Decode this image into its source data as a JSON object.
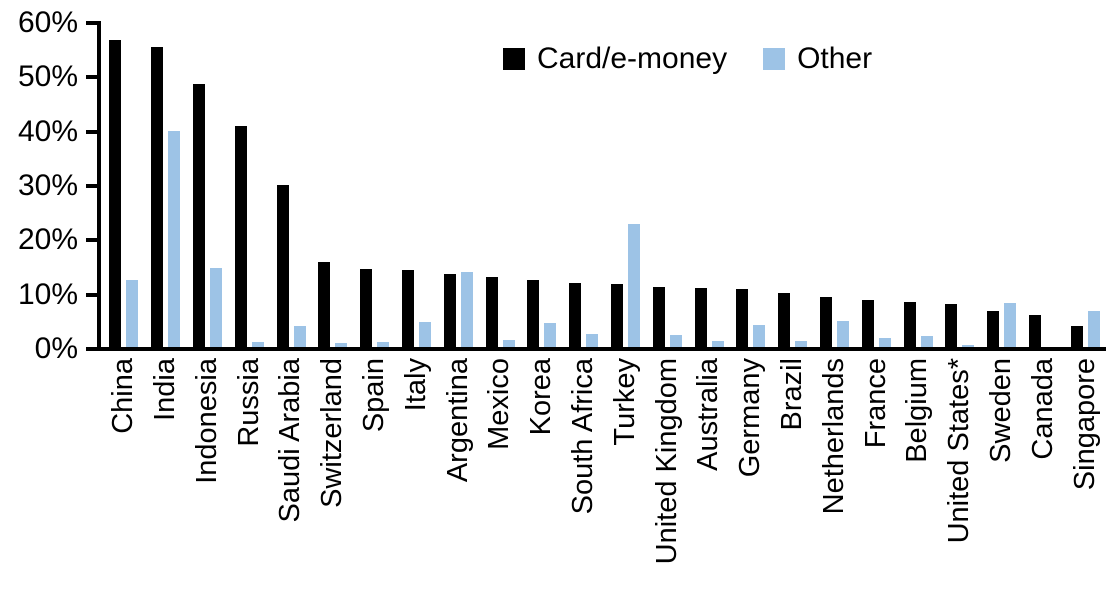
{
  "chart_data": {
    "type": "bar",
    "title": "",
    "xlabel": "",
    "ylabel": "",
    "ylim": [
      0,
      60
    ],
    "ytick_step": 10,
    "ytick_labels": [
      "0%",
      "10%",
      "20%",
      "30%",
      "40%",
      "50%",
      "60%"
    ],
    "grid": false,
    "legend_position": "top-center",
    "categories": [
      "China",
      "India",
      "Indonesia",
      "Russia",
      "Saudi Arabia",
      "Switzerland",
      "Spain",
      "Italy",
      "Argentina",
      "Mexico",
      "Korea",
      "South Africa",
      "Turkey",
      "United Kingdom",
      "Australia",
      "Germany",
      "Brazil",
      "Netherlands",
      "France",
      "Belgium",
      "United States*",
      "Sweden",
      "Canada",
      "Singapore"
    ],
    "series": [
      {
        "name": "Card/e-money",
        "color": "#000000",
        "values": [
          56.5,
          55.2,
          48.4,
          40.6,
          29.9,
          15.7,
          14.3,
          14.1,
          13.4,
          12.9,
          12.3,
          11.8,
          11.6,
          11.0,
          10.9,
          10.7,
          10.0,
          9.2,
          8.7,
          8.2,
          7.9,
          6.6,
          5.9,
          3.9
        ]
      },
      {
        "name": "Other",
        "color": "#9DC3E6",
        "values": [
          12.3,
          39.8,
          14.5,
          1.0,
          3.9,
          0.8,
          1.0,
          4.6,
          13.9,
          1.3,
          4.5,
          2.4,
          22.6,
          2.3,
          1.1,
          4.0,
          1.2,
          4.8,
          1.6,
          2.1,
          0.3,
          8.1,
          0.0,
          6.7
        ]
      }
    ]
  }
}
